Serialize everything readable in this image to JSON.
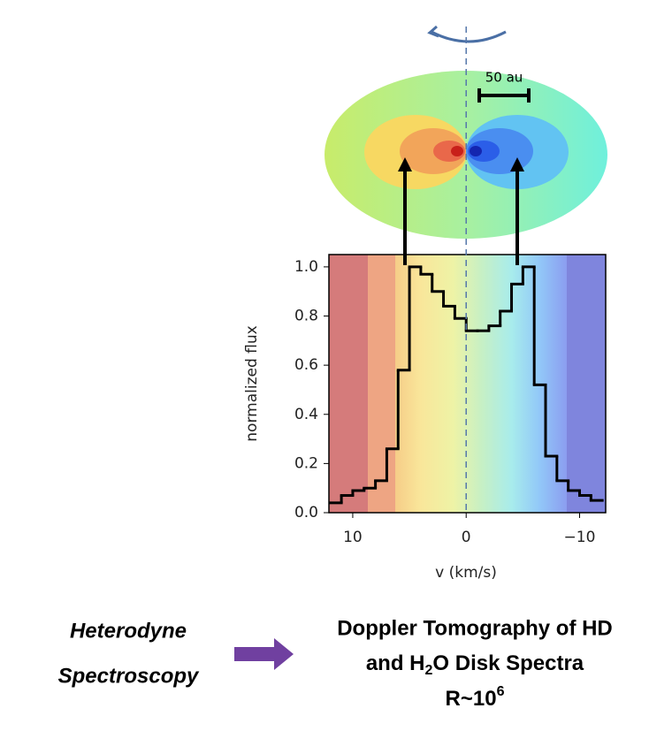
{
  "chart_data": {
    "type": "step",
    "xlabel": "v (km/s)",
    "ylabel": "normalized flux",
    "x": [
      11.5,
      10.5,
      9.5,
      8.5,
      7.5,
      6.5,
      5.5,
      4.5,
      3.5,
      2.5,
      1.5,
      0.5,
      -0.5,
      -1.5,
      -2.5,
      -3.5,
      -4.5,
      -5.5,
      -6.5,
      -7.5,
      -8.5,
      -9.5,
      -10.5,
      -11.5
    ],
    "series": [
      {
        "color": "#000000",
        "values": [
          0.04,
          0.07,
          0.09,
          0.1,
          0.13,
          0.26,
          0.58,
          1.0,
          0.97,
          0.9,
          0.84,
          0.79,
          0.74,
          0.74,
          0.76,
          0.82,
          0.93,
          1.0,
          0.52,
          0.23,
          0.13,
          0.09,
          0.07,
          0.05
        ]
      }
    ],
    "xlim": [
      12.1,
      -12.3
    ],
    "xticks": [
      10,
      0,
      {
        "value": -10,
        "label": "−10"
      }
    ],
    "ylim": [
      0,
      1.05
    ],
    "yticks": [
      {
        "value": 0,
        "label": "0.0"
      },
      {
        "value": 0.2,
        "label": "0.2"
      },
      {
        "value": 0.4,
        "label": "0.4"
      },
      {
        "value": 0.6,
        "label": "0.6"
      },
      {
        "value": 0.8,
        "label": "0.8"
      },
      {
        "value": 1.0,
        "label": "1.0"
      }
    ]
  },
  "diagram": {
    "scale_label": "50 au",
    "left_label": [
      "Heterodyne",
      "Spectroscopy"
    ],
    "right_label": {
      "line1": "Doppler Tomography of HD",
      "line2": [
        "and H",
        "2",
        "O Disk Spectra"
      ],
      "line3": [
        "R~10",
        "6"
      ]
    }
  }
}
